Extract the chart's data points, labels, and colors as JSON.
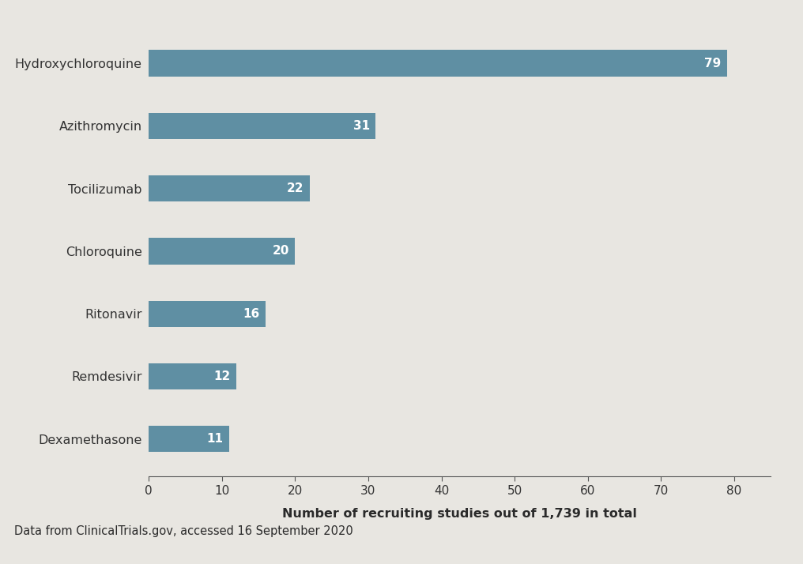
{
  "categories": [
    "Dexamethasone",
    "Remdesivir",
    "Ritonavir",
    "Chloroquine",
    "Tocilizumab",
    "Azithromycin",
    "Hydroxychloroquine"
  ],
  "values": [
    11,
    12,
    16,
    20,
    22,
    31,
    79
  ],
  "bar_color": "#5f8fa3",
  "label_color": "#ffffff",
  "background_color": "#e8e6e1",
  "plot_bg_color": "#e8e6e1",
  "xlabel": "Number of recruiting studies out of 1,739 in total",
  "xlabel_fontsize": 11.5,
  "tick_fontsize": 11,
  "category_fontsize": 11.5,
  "value_fontsize": 11,
  "xlim": [
    0,
    85
  ],
  "xticks": [
    0,
    10,
    20,
    30,
    40,
    50,
    60,
    70,
    80
  ],
  "footer_text": "Data from ClinicalTrials.gov, accessed 16 September 2020",
  "footer_bg_color": "#b8b5b0",
  "footer_separator_color": "#1a1a1a",
  "footer_fontsize": 10.5,
  "bar_height": 0.42
}
